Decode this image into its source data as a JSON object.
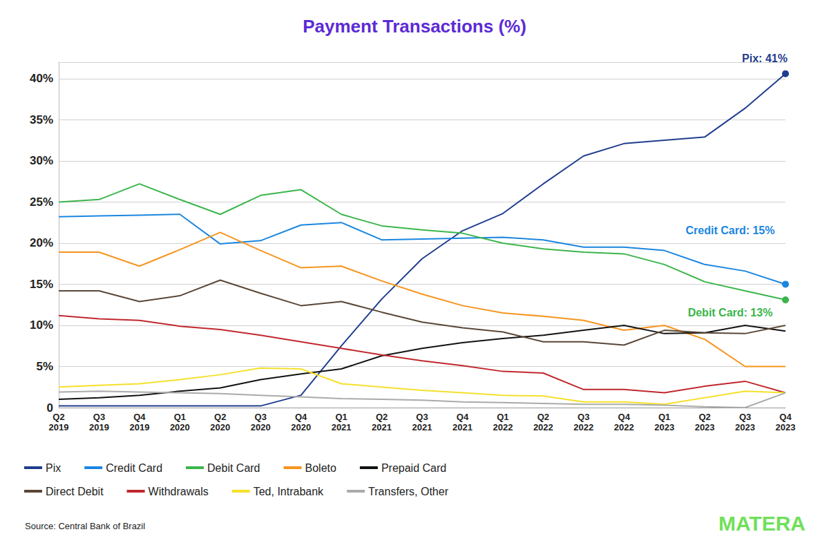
{
  "chart_data": {
    "type": "line",
    "title": "Payment Transactions (%)",
    "source": "Source: Central Bank of Brazil",
    "logo": "MATERA",
    "categories": [
      "Q2\n2019",
      "Q3\n2019",
      "Q4\n2019",
      "Q1\n2020",
      "Q2\n2020",
      "Q3\n2020",
      "Q4\n2020",
      "Q1\n2021",
      "Q2\n2021",
      "Q3\n2021",
      "Q4\n2021",
      "Q1\n2022",
      "Q2\n2022",
      "Q3\n2022",
      "Q4\n2022",
      "Q1\n2023",
      "Q2\n2023",
      "Q3\n2023",
      "Q4\n2023"
    ],
    "series": [
      {
        "name": "Pix",
        "color": "#1f3d8f",
        "values": [
          0.2,
          0.2,
          0.2,
          0.2,
          0.2,
          0.2,
          1.5,
          7.5,
          13.2,
          18.1,
          21.5,
          23.6,
          27.2,
          30.6,
          32.1,
          32.5,
          32.9,
          36.4,
          40.6
        ]
      },
      {
        "name": "Credit Card",
        "color": "#1a86e0",
        "values": [
          23.2,
          23.3,
          23.4,
          23.5,
          19.9,
          20.3,
          22.2,
          22.5,
          20.4,
          20.5,
          20.6,
          20.7,
          20.4,
          19.5,
          19.5,
          19.1,
          17.4,
          16.6,
          15.0
        ]
      },
      {
        "name": "Debit Card",
        "color": "#3ab54a",
        "values": [
          25.0,
          25.3,
          27.2,
          25.3,
          23.5,
          25.8,
          26.5,
          23.5,
          22.1,
          21.6,
          21.2,
          20.0,
          19.3,
          18.9,
          18.7,
          17.4,
          15.3,
          14.2,
          13.1
        ]
      },
      {
        "name": "Boleto",
        "color": "#f7941d",
        "values": [
          18.9,
          18.9,
          17.2,
          19.2,
          21.3,
          19.1,
          17.0,
          17.2,
          15.4,
          13.8,
          12.4,
          11.5,
          11.1,
          10.6,
          9.4,
          10.0,
          8.3,
          5.0,
          5.0
        ]
      },
      {
        "name": "Prepaid Card",
        "color": "#111111",
        "values": [
          1.0,
          1.2,
          1.5,
          2.0,
          2.4,
          3.4,
          4.1,
          4.7,
          6.3,
          7.2,
          7.9,
          8.4,
          8.8,
          9.4,
          10.0,
          9.0,
          9.1,
          10.0,
          9.3
        ]
      },
      {
        "name": "Direct Debit",
        "color": "#5a4636",
        "values": [
          14.2,
          14.2,
          12.9,
          13.6,
          15.5,
          13.9,
          12.4,
          12.9,
          11.6,
          10.4,
          9.7,
          9.2,
          8.0,
          8.0,
          7.6,
          9.4,
          9.1,
          9.0,
          10.0
        ]
      },
      {
        "name": "Withdrawals",
        "color": "#c1272d",
        "values": [
          11.2,
          10.8,
          10.6,
          9.9,
          9.5,
          8.8,
          8.0,
          7.2,
          6.4,
          5.7,
          5.1,
          4.4,
          4.2,
          2.2,
          2.2,
          1.8,
          2.6,
          3.2,
          1.8
        ]
      },
      {
        "name": "Ted, Intrabank",
        "color": "#f5e02a",
        "values": [
          2.5,
          2.7,
          2.9,
          3.4,
          4.0,
          4.8,
          4.7,
          2.9,
          2.5,
          2.1,
          1.8,
          1.5,
          1.4,
          0.7,
          0.7,
          0.4,
          1.2,
          2.0,
          1.8
        ]
      },
      {
        "name": "Transfers, Other",
        "color": "#aaaaaa",
        "values": [
          1.9,
          2.0,
          1.9,
          1.8,
          1.7,
          1.5,
          1.3,
          1.1,
          1.0,
          0.9,
          0.7,
          0.6,
          0.5,
          0.4,
          0.4,
          0.3,
          0.1,
          0.0,
          1.8
        ]
      }
    ],
    "annotations": [
      {
        "series": "Pix",
        "text": "Pix: 41%"
      },
      {
        "series": "Credit Card",
        "text": "Credit Card: 15%"
      },
      {
        "series": "Debit Card",
        "text": "Debit Card: 13%"
      }
    ],
    "ylim": [
      0,
      42
    ],
    "yticks": [
      0,
      {
        "value": 5,
        "label": "5%"
      },
      {
        "value": 10,
        "label": "10%"
      },
      {
        "value": 15,
        "label": "15%"
      },
      {
        "value": 20,
        "label": "20%"
      },
      {
        "value": 25,
        "label": "25%"
      },
      {
        "value": 30,
        "label": "30%"
      },
      {
        "value": 35,
        "label": "35%"
      },
      {
        "value": 40,
        "label": "40%"
      }
    ],
    "grid": true,
    "legend": "bottom"
  }
}
